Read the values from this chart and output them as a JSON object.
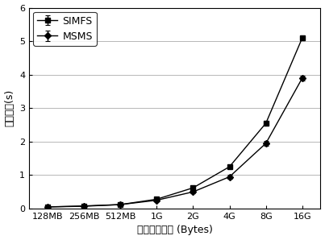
{
  "x_labels": [
    "128MB",
    "256MB",
    "512MB",
    "1G",
    "2G",
    "4G",
    "8G",
    "16G"
  ],
  "simfs_y": [
    0.05,
    0.08,
    0.12,
    0.28,
    0.62,
    1.25,
    2.55,
    5.1
  ],
  "msms_y": [
    0.05,
    0.07,
    0.12,
    0.25,
    0.5,
    0.95,
    1.95,
    3.9
  ],
  "simfs_errors": [
    0.02,
    0.02,
    0.02,
    0.03,
    0.04,
    0.05,
    0.07,
    0.08
  ],
  "msms_errors": [
    0.02,
    0.02,
    0.02,
    0.03,
    0.04,
    0.05,
    0.07,
    0.08
  ],
  "xlabel": "写入文件大小 (Bytes)",
  "ylabel": "平均延迟(s)",
  "ylim": [
    0,
    6
  ],
  "yticks": [
    0,
    1,
    2,
    3,
    4,
    5,
    6
  ],
  "legend_labels": [
    "SIMFS",
    "MSMS"
  ],
  "line_color": "#000000",
  "background_color": "#ffffff",
  "grid_color": "#888888",
  "simfs_marker": "s",
  "msms_marker": "D",
  "axis_fontsize": 9,
  "tick_fontsize": 8,
  "legend_fontsize": 9
}
